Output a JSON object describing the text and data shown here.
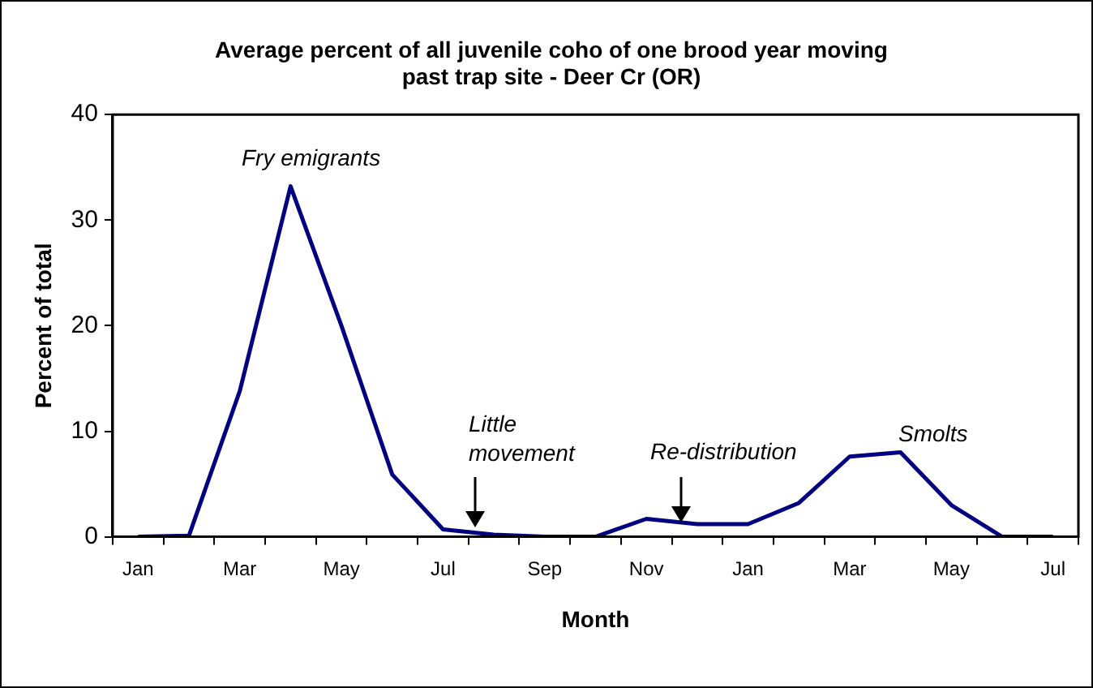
{
  "chart_data": {
    "type": "line",
    "title": "Average percent of all juvenile coho of one brood year moving past trap site - Deer Cr (OR)",
    "xlabel": "Month",
    "ylabel": "Percent of total",
    "categories": [
      "Jan",
      null,
      "Mar",
      null,
      "May",
      null,
      "Jul",
      null,
      "Sep",
      null,
      "Nov",
      null,
      "Jan",
      null,
      "Mar",
      null,
      "May",
      null,
      "Jul"
    ],
    "series": [
      {
        "color": "#000080",
        "values": [
          0,
          0.1,
          13.8,
          33.2,
          20,
          5.9,
          0.7,
          0.2,
          0,
          0,
          1.7,
          1.2,
          1.2,
          3.2,
          7.6,
          8,
          3,
          0,
          0
        ]
      }
    ],
    "ylim": [
      0,
      40
    ],
    "yticks": [
      0,
      10,
      20,
      30,
      40
    ],
    "grid": false,
    "legend": false,
    "marker": "none",
    "line_style": "solid",
    "annotations": [
      "Fry emigrants",
      "Little movement",
      "Re-distribution",
      "Smolts"
    ]
  }
}
